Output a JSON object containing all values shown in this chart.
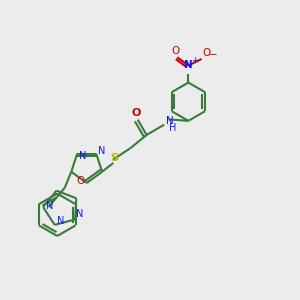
{
  "bg_color": "#ececec",
  "bond_color": "#3a7a3a",
  "n_color": "#1414ff",
  "o_color": "#cc0000",
  "s_color": "#b8b800",
  "figsize": [
    3.0,
    3.0
  ],
  "dpi": 100,
  "xlim": [
    0,
    10
  ],
  "ylim": [
    0,
    10
  ]
}
